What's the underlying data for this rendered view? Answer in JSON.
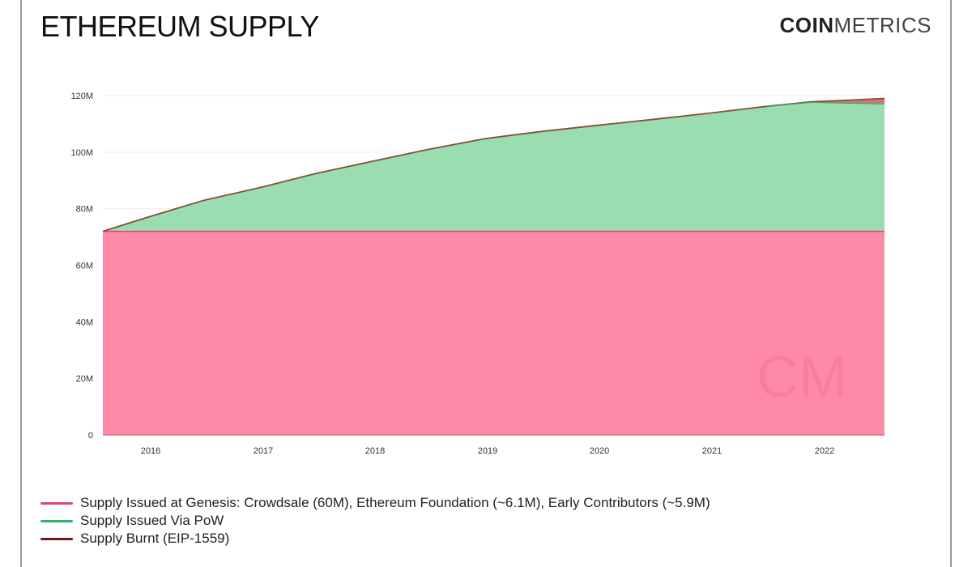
{
  "title": "ETHEREUM SUPPLY",
  "brand": {
    "bold": "COIN",
    "light": "METRICS"
  },
  "watermark_text": "CM",
  "colors": {
    "genesis_fill": "#ff8aa7",
    "genesis_line": "#d64a69",
    "pow_fill": "#99ddb0",
    "pow_line": "#2fae6a",
    "burnt_fill": "#c97a78",
    "burnt_line": "#8b1a1a",
    "outline": "#8b4a3a",
    "grid": "#eeeeee",
    "axis_text": "#333333"
  },
  "chart_data": {
    "type": "area",
    "stacked": true,
    "x_tick_labels": [
      "2016",
      "2017",
      "2018",
      "2019",
      "2020",
      "2021",
      "2022"
    ],
    "y_tick_labels": [
      "0",
      "20M",
      "40M",
      "60M",
      "80M",
      "100M",
      "120M"
    ],
    "y_ticks": [
      0,
      20,
      40,
      60,
      80,
      100,
      120
    ],
    "ylim": [
      0,
      120
    ],
    "xlim": [
      2015.6,
      2022.55
    ],
    "grid": "horizontal",
    "legend_position": "bottom-left",
    "x": [
      2015.6,
      2016.0,
      2016.5,
      2017.0,
      2017.5,
      2018.0,
      2018.5,
      2019.0,
      2019.5,
      2020.0,
      2020.5,
      2021.0,
      2021.5,
      2021.9,
      2022.2,
      2022.55
    ],
    "series": [
      {
        "name": "Supply Issued at Genesis: Crowdsale (60M), Ethereum Foundation (~6.1M),  Early Contributors (~5.9M)",
        "color": "#ff8aa7",
        "values": [
          72,
          72,
          72,
          72,
          72,
          72,
          72,
          72,
          72,
          72,
          72,
          72,
          72,
          72,
          72,
          72
        ]
      },
      {
        "name": "Supply Issued Via PoW",
        "color": "#99ddb0",
        "values": [
          0,
          5,
          11,
          15.5,
          20.5,
          24.8,
          29,
          32.8,
          35.3,
          37.5,
          39.6,
          41.8,
          44.2,
          45.8,
          46.3,
          47
        ]
      },
      {
        "name": "Supply Burnt (EIP-1559)",
        "color": "#c97a78",
        "values": [
          0,
          0,
          0,
          0,
          0,
          0,
          0,
          0,
          0,
          0,
          0,
          0,
          0,
          0.2,
          1.0,
          2.0
        ]
      }
    ]
  }
}
